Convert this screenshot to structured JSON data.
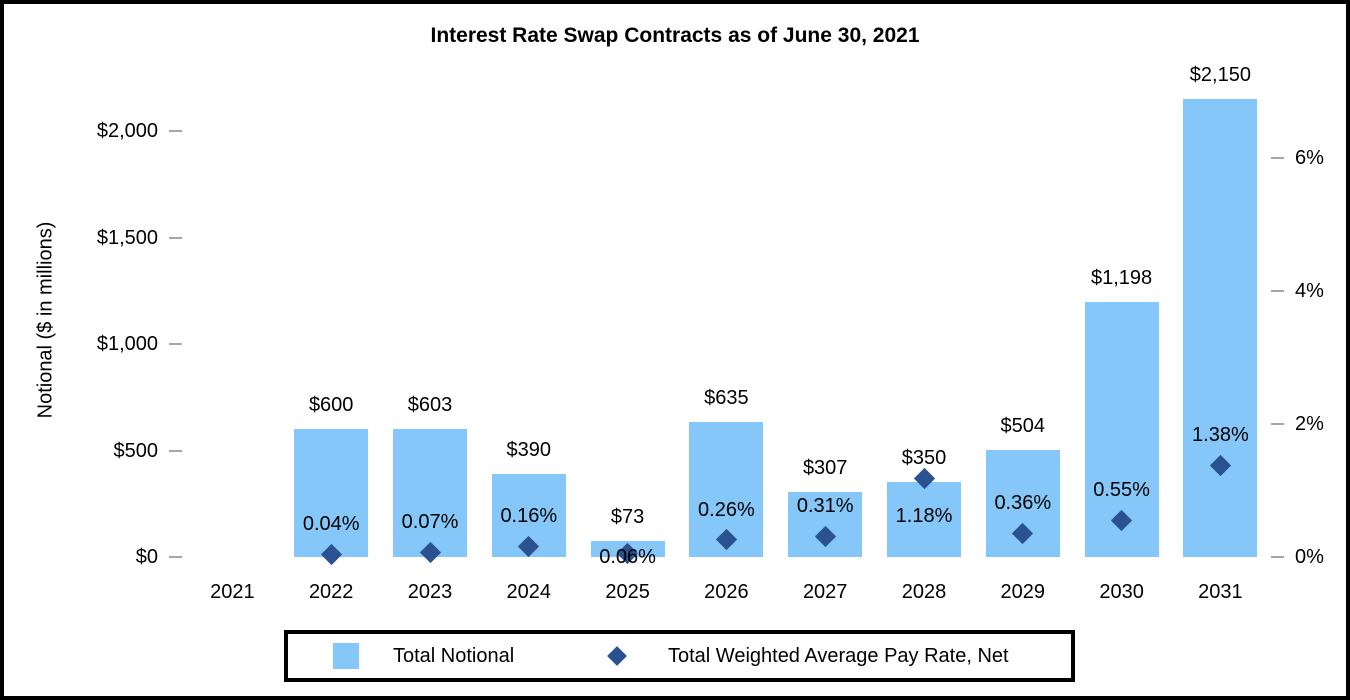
{
  "title": "Interest Rate Swap Contracts as of June 30, 2021",
  "colors": {
    "bar": "#84C7F8",
    "marker": "#2A5290",
    "tick": "#A6A6A6",
    "text": "#000000",
    "border": "#000000"
  },
  "chart_data": {
    "type": "bar",
    "title": "Interest Rate Swap Contracts as of June 30, 2021",
    "grid": false,
    "legend_position": "bottom",
    "categories": [
      "2021",
      "2022",
      "2023",
      "2024",
      "2025",
      "2026",
      "2027",
      "2028",
      "2029",
      "2030",
      "2031"
    ],
    "series": [
      {
        "name": "Total Notional",
        "kind": "bar",
        "axis": "left",
        "values": [
          null,
          600,
          603,
          390,
          73,
          635,
          307,
          350,
          504,
          1198,
          2150
        ],
        "labels": [
          "",
          "$600",
          "$603",
          "$390",
          "$73",
          "$635",
          "$307",
          "$350",
          "$504",
          "$1,198",
          "$2,150"
        ]
      },
      {
        "name": "Total Weighted Average Pay Rate, Net",
        "kind": "scatter-diamond",
        "axis": "right",
        "values": [
          null,
          0.04,
          0.07,
          0.16,
          0.06,
          0.26,
          0.31,
          1.18,
          0.36,
          0.55,
          1.38
        ],
        "labels": [
          "",
          "0.04%",
          "0.07%",
          "0.16%",
          "0.06%",
          "0.26%",
          "0.31%",
          "1.18%",
          "0.36%",
          "0.55%",
          "1.38%"
        ],
        "label_placement": [
          null,
          "above",
          "above",
          "above",
          "overlap",
          "above",
          "above",
          "below",
          "above",
          "above",
          "above"
        ]
      }
    ],
    "left_axis": {
      "title": "Notional ($ in millions)",
      "tick_labels": [
        "$0",
        "$500",
        "$1,000",
        "$1,500",
        "$2,000"
      ],
      "tick_values": [
        0,
        500,
        1000,
        1500,
        2000
      ],
      "range": [
        0,
        2000
      ]
    },
    "right_axis": {
      "tick_labels": [
        "0%",
        "2%",
        "4%",
        "6%"
      ],
      "tick_values": [
        0,
        2,
        4,
        6
      ],
      "range": [
        0,
        6
      ]
    }
  }
}
